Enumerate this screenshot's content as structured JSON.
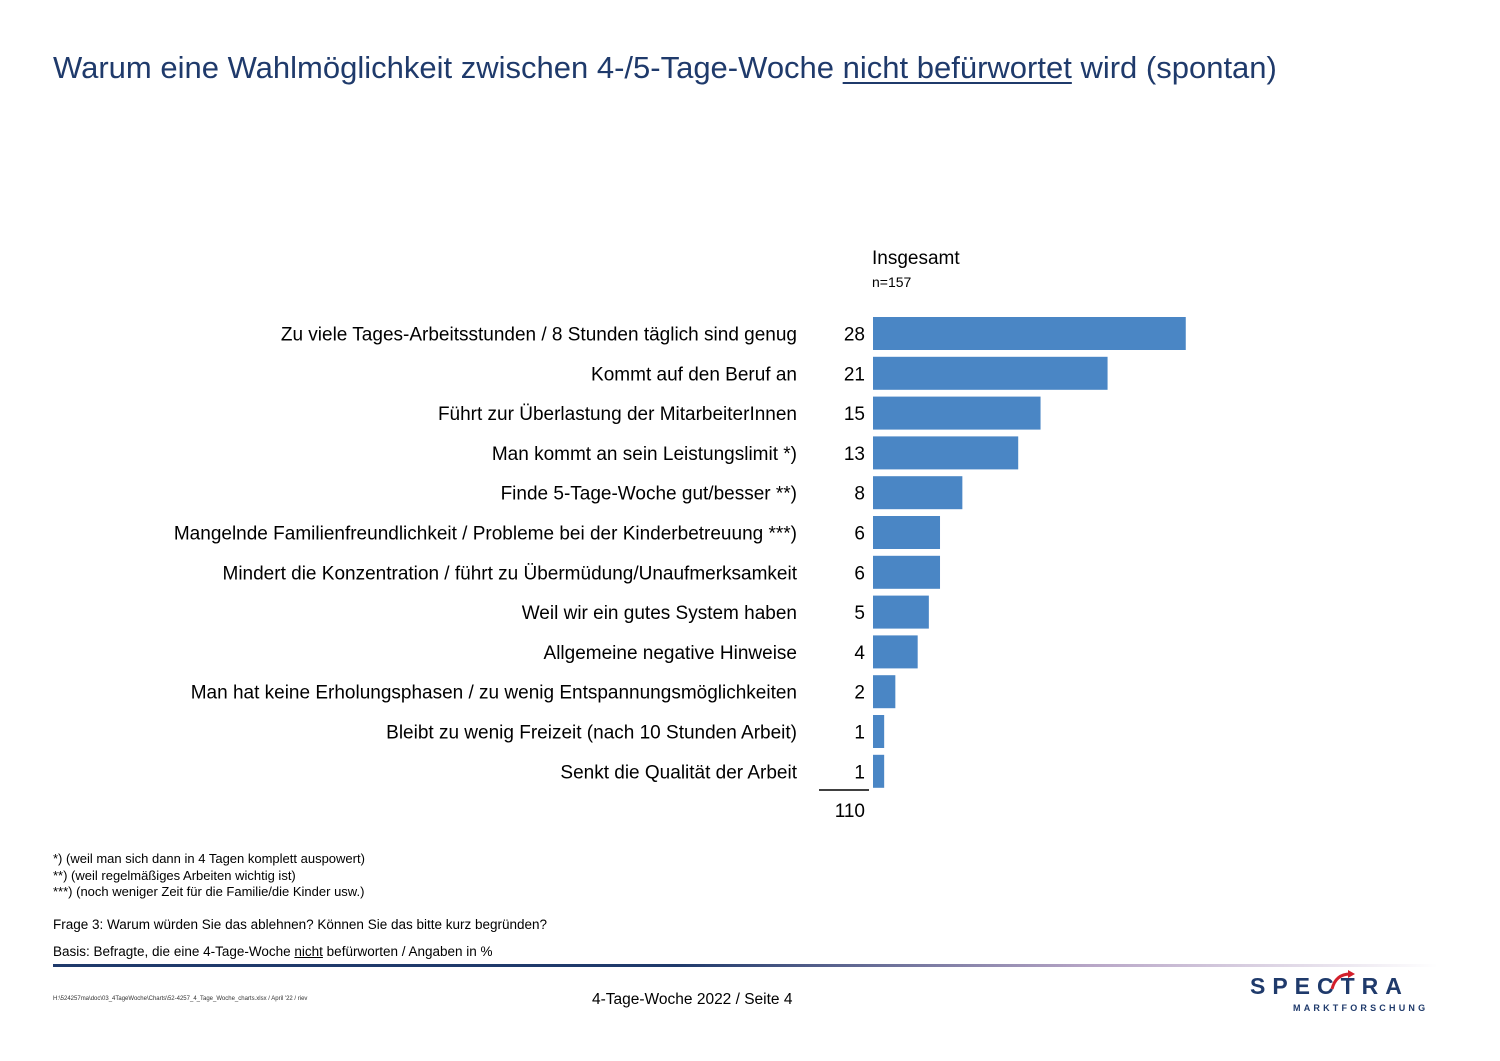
{
  "title": {
    "before": "Warum eine Wahlmöglichkeit zwischen 4-/5-Tage-Woche ",
    "underlined": "nicht befürwortet",
    "after": " wird (spontan)"
  },
  "column_header": "Insgesamt",
  "n_label": "n=157",
  "total_label": "110",
  "chart_data": {
    "type": "bar",
    "orientation": "horizontal",
    "categories": [
      "Zu viele Tages-Arbeitsstunden / 8 Stunden täglich sind genug",
      "Kommt auf den Beruf an",
      "Führt zur Überlastung der MitarbeiterInnen",
      "Man kommt an sein Leistungslimit *)",
      "Finde 5-Tage-Woche gut/besser **)",
      "Mangelnde Familienfreundlichkeit / Probleme bei der Kinderbetreuung ***)",
      "Mindert die Konzentration / führt zu Übermüdung/Unaufmerksamkeit",
      "Weil wir ein gutes System haben",
      "Allgemeine negative Hinweise",
      "Man hat keine Erholungsphasen / zu wenig Entspannungsmöglichkeiten",
      "Bleibt zu wenig Freizeit (nach 10 Stunden Arbeit)",
      "Senkt die Qualität der Arbeit"
    ],
    "values": [
      28,
      21,
      15,
      13,
      8,
      6,
      6,
      5,
      4,
      2,
      1,
      1
    ],
    "bar_color": "#4a86c5"
  },
  "footnotes": [
    "*) (weil man sich dann in 4 Tagen komplett auspowert)",
    "**) (weil regelmäßiges Arbeiten wichtig ist)",
    "***) (noch weniger Zeit für die Familie/die Kinder usw.)"
  ],
  "frage": "Frage 3: Warum würden Sie das ablehnen? Können Sie das bitte kurz begründen?",
  "basis": {
    "before": "Basis: Befragte, die eine 4-Tage-Woche ",
    "underlined": "nicht",
    "after": " befürworten / Angaben in %"
  },
  "footer": {
    "path": "H:\\524257ma\\doc\\03_4TageWoche\\Charts\\52-4257_4_Tage_Woche_charts.xlsx / April '22 / riev",
    "page": "4-Tage-Woche 2022  /  Seite  4"
  },
  "logo": {
    "main": "SPECTRA",
    "sub": "MARKTFORSCHUNG",
    "icon": "spectra-arrow-logo"
  }
}
